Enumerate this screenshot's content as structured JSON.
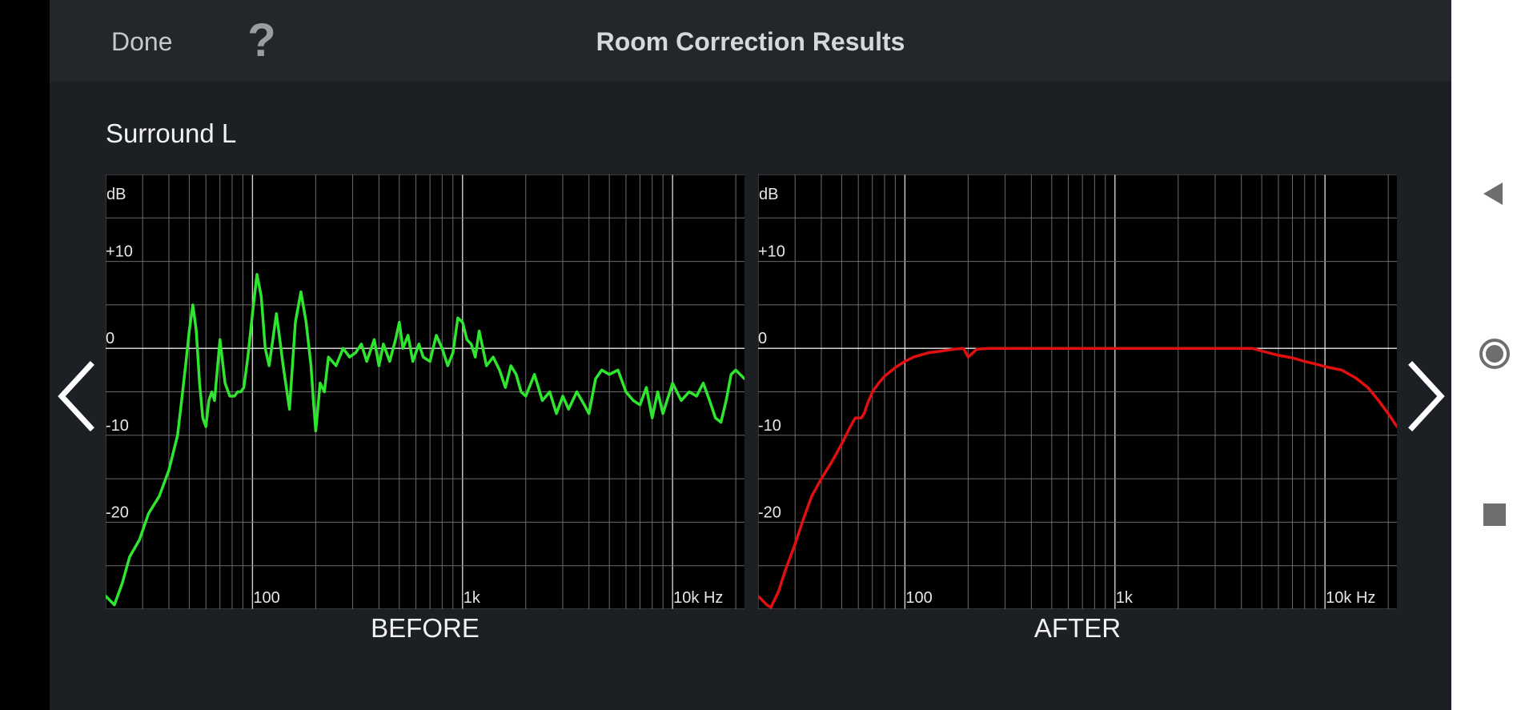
{
  "header": {
    "done_label": "Done",
    "help_label": "?",
    "title": "Room Correction Results"
  },
  "channel": "Surround L",
  "charts": {
    "before_label": "BEFORE",
    "after_label": "AFTER",
    "y_unit": "dB",
    "y_ticks": [
      "+10",
      "0",
      "-10",
      "-20"
    ],
    "x_ticks": [
      "100",
      "1k",
      "10k Hz"
    ]
  },
  "colors": {
    "before_curve": "#2ee62e",
    "after_curve": "#e01010",
    "grid": "#6b6b6b",
    "axis_text": "#e6e6e6"
  },
  "icons": {
    "prev": "chevron-left-icon",
    "next": "chevron-right-icon",
    "back": "triangle-back-icon",
    "home": "circle-home-icon",
    "recent": "square-recent-icon"
  },
  "chart_data": [
    {
      "type": "line",
      "title": "BEFORE",
      "ylabel": "dB",
      "xlabel": "Hz",
      "x_scale": "log",
      "xlim": [
        20,
        22000
      ],
      "ylim": [
        -30,
        20
      ],
      "grid": true,
      "series": [
        {
          "color": "#2ee62e",
          "x": [
            20,
            22,
            24,
            26,
            29,
            32,
            36,
            40,
            44,
            46,
            48,
            50,
            52,
            54,
            56,
            58,
            60,
            62,
            64,
            66,
            70,
            74,
            78,
            82,
            85,
            88,
            91,
            95,
            100,
            105,
            110,
            115,
            120,
            125,
            130,
            135,
            140,
            150,
            160,
            170,
            180,
            190,
            195,
            200,
            210,
            220,
            230,
            250,
            270,
            290,
            310,
            330,
            350,
            380,
            400,
            420,
            450,
            480,
            500,
            520,
            550,
            580,
            620,
            650,
            700,
            750,
            800,
            850,
            900,
            950,
            1000,
            1050,
            1100,
            1150,
            1200,
            1300,
            1400,
            1500,
            1600,
            1700,
            1800,
            1900,
            2000,
            2200,
            2400,
            2600,
            2800,
            3000,
            3200,
            3500,
            3800,
            4000,
            4300,
            4600,
            5000,
            5500,
            6000,
            6500,
            7000,
            7500,
            8000,
            8500,
            9000,
            10000,
            11000,
            12000,
            13000,
            14000,
            15000,
            16000,
            17000,
            18000,
            19000,
            20000,
            22000
          ],
          "y": [
            -28.5,
            -29.5,
            -27,
            -24,
            -22,
            -19,
            -17,
            -14,
            -10,
            -6,
            -2,
            2,
            5,
            2,
            -4,
            -8,
            -9,
            -6,
            -5,
            -6,
            1,
            -4,
            -5.5,
            -5.5,
            -5,
            -5,
            -4.5,
            -1,
            4,
            8.5,
            6,
            0,
            -2,
            1,
            4,
            1,
            -2,
            -7,
            3,
            6.5,
            3,
            -2,
            -6,
            -9.5,
            -4,
            -5,
            -1,
            -2,
            0,
            -1,
            -0.5,
            0.5,
            -1.5,
            1,
            -2,
            0.5,
            -1.5,
            1,
            3,
            0,
            1.5,
            -1.5,
            0.5,
            -1,
            -1.5,
            1.5,
            0,
            -2,
            -0.5,
            3.5,
            3,
            1,
            0.5,
            -1,
            2,
            -2,
            -1,
            -2.5,
            -4.5,
            -2,
            -3,
            -5,
            -5.5,
            -3,
            -6,
            -5,
            -7.5,
            -5.5,
            -7,
            -5,
            -6.5,
            -7.5,
            -3.5,
            -2.5,
            -3,
            -2.5,
            -5,
            -6,
            -6.5,
            -4.5,
            -8,
            -5,
            -7.5,
            -4,
            -6,
            -5,
            -5.5,
            -4,
            -6,
            -8,
            -8.5,
            -6,
            -3,
            -2.5,
            -3.5
          ]
        }
      ]
    },
    {
      "type": "line",
      "title": "AFTER",
      "ylabel": "dB",
      "xlabel": "Hz",
      "x_scale": "log",
      "xlim": [
        20,
        22000
      ],
      "ylim": [
        -30,
        20
      ],
      "grid": true,
      "series": [
        {
          "color": "#e01010",
          "x": [
            20,
            22,
            23,
            25,
            27,
            30,
            33,
            36,
            40,
            45,
            50,
            55,
            58,
            60,
            62,
            64,
            66,
            70,
            75,
            80,
            90,
            100,
            110,
            130,
            150,
            170,
            190,
            200,
            220,
            250,
            300,
            400,
            500,
            700,
            1000,
            1500,
            2000,
            3000,
            4000,
            4500,
            5000,
            6000,
            7000,
            8000,
            9000,
            10000,
            12000,
            14000,
            16000,
            18000,
            20000,
            22000
          ],
          "y": [
            -28.5,
            -29.5,
            -29.8,
            -28,
            -25.5,
            -22.5,
            -19.5,
            -17,
            -15,
            -13,
            -11,
            -9,
            -8,
            -8,
            -8,
            -7.5,
            -6.5,
            -5,
            -4,
            -3.2,
            -2.2,
            -1.5,
            -1.0,
            -0.5,
            -0.3,
            -0.1,
            0,
            -1,
            -0.1,
            0,
            0,
            0,
            0,
            0,
            0,
            0,
            0,
            0,
            0,
            0,
            -0.3,
            -0.8,
            -1.1,
            -1.5,
            -1.8,
            -2.1,
            -2.5,
            -3.4,
            -4.5,
            -6.0,
            -7.5,
            -9.0
          ]
        }
      ]
    }
  ]
}
